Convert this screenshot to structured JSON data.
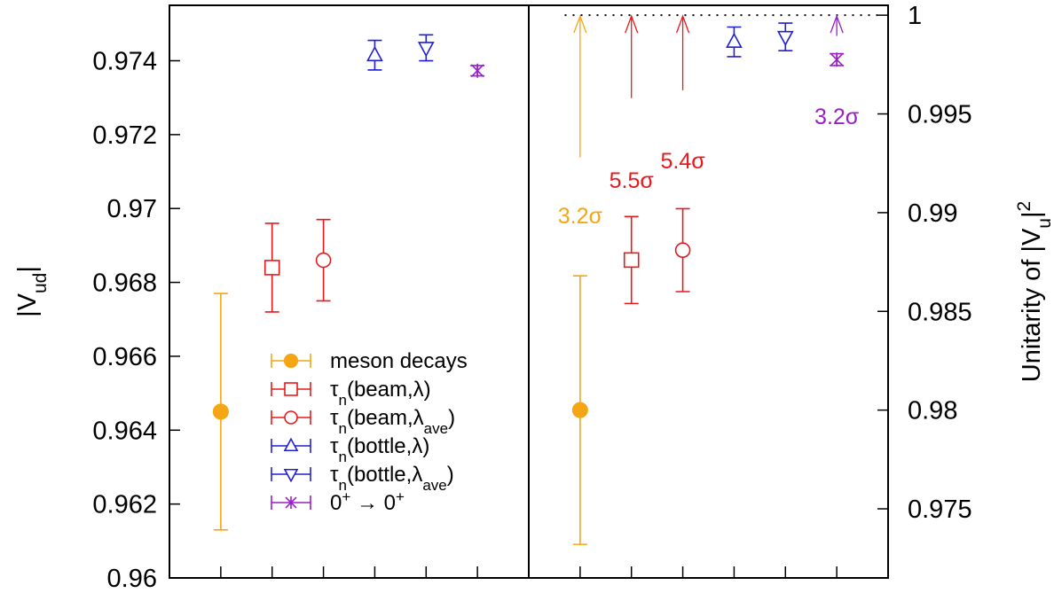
{
  "chart_data": [
    {
      "panel": "left",
      "type": "scatter",
      "ylabel": "|V",
      "ylabel_sub": "ud",
      "ylabel_end": "|",
      "ylim": [
        0.96,
        0.9755
      ],
      "yticks": [
        {
          "value": 0.96,
          "label": "0.96"
        },
        {
          "value": 0.962,
          "label": "0.962"
        },
        {
          "value": 0.964,
          "label": "0.964"
        },
        {
          "value": 0.966,
          "label": "0.966"
        },
        {
          "value": 0.968,
          "label": "0.968"
        },
        {
          "value": 0.97,
          "label": "0.97"
        },
        {
          "value": 0.972,
          "label": "0.972"
        },
        {
          "value": 0.974,
          "label": "0.974"
        }
      ],
      "xlim": [
        0,
        7
      ],
      "x_ticks": [
        1,
        2,
        3,
        4,
        5,
        6
      ],
      "series": [
        {
          "name": "meson decays",
          "marker": "filled-circle",
          "color": "#f5a614",
          "x": 1,
          "y": 0.9645,
          "err": 0.0032
        },
        {
          "name": "τn(beam,λ)",
          "marker": "square",
          "color": "#e8191c",
          "x": 2,
          "y": 0.9684,
          "err": 0.0012
        },
        {
          "name": "τn(beam,λave)",
          "marker": "circle",
          "color": "#e8191c",
          "x": 3,
          "y": 0.9686,
          "err": 0.0011
        },
        {
          "name": "τn(bottle,λ)",
          "marker": "triangle-up",
          "color": "#1f1fd6",
          "x": 4,
          "y": 0.97415,
          "err": 0.0004
        },
        {
          "name": "τn(bottle,λave)",
          "marker": "triangle-down",
          "color": "#1f1fd6",
          "x": 5,
          "y": 0.97435,
          "err": 0.00035
        },
        {
          "name": "0+ → 0+",
          "marker": "asterisk",
          "color": "#9a1ec8",
          "x": 6,
          "y": 0.97373,
          "err": 0.00014
        }
      ],
      "legend": {
        "placement": "bottom-right",
        "entries": [
          {
            "text": "meson decays",
            "marker": "filled-circle",
            "color": "#f5a614"
          },
          {
            "text": "τ",
            "sub1": "n",
            "rest": "(beam,λ)",
            "marker": "square",
            "color": "#e8191c"
          },
          {
            "text": "τ",
            "sub1": "n",
            "rest": "(beam,λ",
            "sub2": "ave",
            "end": ")",
            "marker": "circle",
            "color": "#e8191c"
          },
          {
            "text": "τ",
            "sub1": "n",
            "rest": "(bottle,λ)",
            "marker": "triangle-up",
            "color": "#1f1fd6"
          },
          {
            "text": "τ",
            "sub1": "n",
            "rest": "(bottle,λ",
            "sub2": "ave",
            "end": ")",
            "marker": "triangle-down",
            "color": "#1f1fd6"
          },
          {
            "text": "0",
            "sup1": "+",
            "rest": " → 0",
            "sup2": "+",
            "marker": "asterisk",
            "color": "#9a1ec8"
          }
        ]
      }
    },
    {
      "panel": "right",
      "type": "scatter",
      "ylabel": "Unitarity of |V",
      "ylabel_sub": "u",
      "ylabel_end": "|",
      "ylabel_sup": "2",
      "ylim": [
        0.9715,
        1.0005
      ],
      "yticks": [
        {
          "value": 0.975,
          "label": "0.975"
        },
        {
          "value": 0.98,
          "label": "0.98"
        },
        {
          "value": 0.985,
          "label": "0.985"
        },
        {
          "value": 0.99,
          "label": "0.99"
        },
        {
          "value": 0.995,
          "label": "0.995"
        },
        {
          "value": 1.0,
          "label": "1"
        }
      ],
      "xlim": [
        0,
        7
      ],
      "x_ticks": [
        1,
        2,
        3,
        4,
        5,
        6
      ],
      "unitarity_line": 1.0,
      "series": [
        {
          "name": "meson decays",
          "marker": "filled-circle",
          "color": "#f5a614",
          "x": 1,
          "y": 0.98,
          "err": 0.0068,
          "arrow_from": 0.9928,
          "sigma": "3.2σ"
        },
        {
          "name": "τn(beam,λ)",
          "marker": "square",
          "color": "#e8191c",
          "x": 2,
          "y": 0.9876,
          "err": 0.0022,
          "arrow_from": 0.9958,
          "sigma": "5.5σ"
        },
        {
          "name": "τn(beam,λave)",
          "marker": "circle",
          "color": "#e8191c",
          "x": 3,
          "y": 0.9881,
          "err": 0.0021,
          "arrow_from": 0.9962,
          "sigma": "5.4σ"
        },
        {
          "name": "τn(bottle,λ)",
          "marker": "triangle-up",
          "color": "#1f1fd6",
          "x": 4,
          "y": 0.99865,
          "err": 0.00075
        },
        {
          "name": "τn(bottle,λave)",
          "marker": "triangle-down",
          "color": "#1f1fd6",
          "x": 5,
          "y": 0.9989,
          "err": 0.0007
        },
        {
          "name": "0+ → 0+",
          "marker": "asterisk",
          "color": "#9a1ec8",
          "x": 6,
          "y": 0.99775,
          "err": 0.0003,
          "arrow_from": 0.99895,
          "sigma": "3.2σ"
        }
      ]
    }
  ]
}
